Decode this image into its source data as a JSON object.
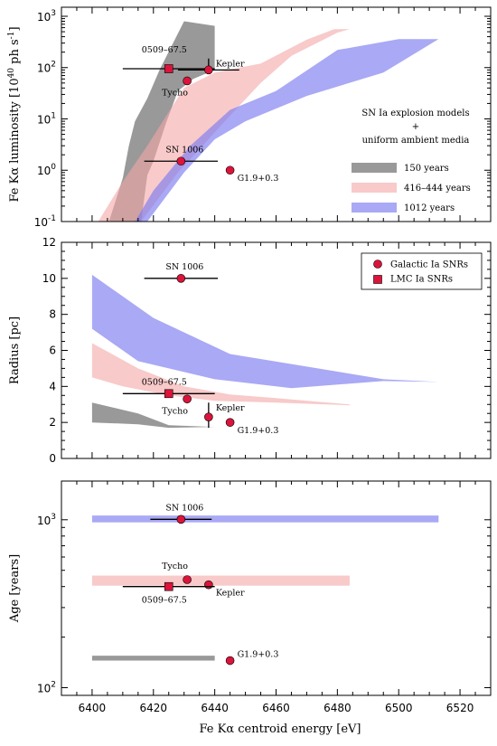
{
  "figure": {
    "xlabel": "Fe Kα centroid energy [eV]"
  },
  "chart_data": [
    {
      "type": "area",
      "panel": "top",
      "ylabel": "Fe Kα luminosity [10^40 ph s^-1]",
      "yscale": "log",
      "xlim": [
        6390,
        6530
      ],
      "ylim": [
        0.1,
        1500
      ],
      "xticks": [
        6400,
        6420,
        6440,
        6460,
        6480,
        6500,
        6520
      ],
      "yticks": [
        0.1,
        1,
        10,
        100,
        1000
      ],
      "ytick_labels": [
        "10^-1",
        "10^0",
        "10^1",
        "10^2",
        "10^3"
      ],
      "legend_title": [
        "SN Ia explosion models",
        "+",
        "uniform ambient media"
      ],
      "bands": [
        {
          "name": "150 years",
          "color": "#808080",
          "opacity": 0.8,
          "upper": [
            [
              6405.5,
              0.1
            ],
            [
              6410,
              0.7
            ],
            [
              6412,
              3
            ],
            [
              6414,
              9
            ],
            [
              6418,
              25
            ],
            [
              6422,
              90
            ],
            [
              6430,
              800
            ],
            [
              6440,
              650
            ]
          ],
          "lower": [
            [
              6440,
              90
            ],
            [
              6433,
              60
            ],
            [
              6428,
              35
            ],
            [
              6424,
              8
            ],
            [
              6420,
              1.5
            ],
            [
              6418,
              0.8
            ],
            [
              6416,
              0.1
            ]
          ]
        },
        {
          "name": "416–444 years",
          "color": "#f4a6a6",
          "opacity": 0.6,
          "upper": [
            [
              6402,
              0.1
            ],
            [
              6410,
              0.6
            ],
            [
              6418,
              3
            ],
            [
              6424,
              11
            ],
            [
              6430,
              40
            ],
            [
              6440,
              80
            ],
            [
              6455,
              120
            ],
            [
              6470,
              350
            ],
            [
              6479,
              560
            ],
            [
              6484,
              560
            ]
          ],
          "lower": [
            [
              6484,
              560
            ],
            [
              6480,
              480
            ],
            [
              6465,
              170
            ],
            [
              6455,
              50
            ],
            [
              6444,
              10
            ],
            [
              6436,
              3
            ],
            [
              6428,
              0.9
            ],
            [
              6422,
              0.3
            ],
            [
              6416,
              0.1
            ]
          ]
        },
        {
          "name": "1012 years",
          "color": "#7b7bf0",
          "opacity": 0.65,
          "upper": [
            [
              6414,
              0.1
            ],
            [
              6420,
              0.4
            ],
            [
              6432,
              3
            ],
            [
              6445,
              15
            ],
            [
              6460,
              35
            ],
            [
              6480,
              220
            ],
            [
              6500,
              360
            ],
            [
              6513,
              360
            ]
          ],
          "lower": [
            [
              6513,
              360
            ],
            [
              6495,
              80
            ],
            [
              6470,
              28
            ],
            [
              6450,
              9
            ],
            [
              6440,
              4
            ],
            [
              6430,
              0.9
            ],
            [
              6424,
              0.3
            ],
            [
              6418,
              0.1
            ]
          ]
        }
      ],
      "points": [
        {
          "label": "0509–67.5",
          "x": 6425,
          "y": 95,
          "marker": "square",
          "xerr": 15,
          "yerr": null
        },
        {
          "label": "Kepler",
          "x": 6438,
          "y": 90,
          "marker": "circle",
          "xerr": 10,
          "yerr": [
            13,
            60
          ]
        },
        {
          "label": "Tycho",
          "x": 6431,
          "y": 55,
          "marker": "circle",
          "xerr": null,
          "yerr": null
        },
        {
          "label": "SN 1006",
          "x": 6429,
          "y": 1.5,
          "marker": "circle",
          "xerr": 12,
          "yerr": null
        },
        {
          "label": "G1.9+0.3",
          "x": 6445,
          "y": 1.0,
          "marker": "circle",
          "xerr": null,
          "yerr": null
        }
      ]
    },
    {
      "type": "area",
      "panel": "middle",
      "ylabel": "Radius [pc]",
      "yscale": "linear",
      "xlim": [
        6390,
        6530
      ],
      "ylim": [
        0,
        12
      ],
      "yticks": [
        0,
        2,
        4,
        6,
        8,
        10,
        12
      ],
      "legend": [
        "Galactic Ia SNRs",
        "LMC Ia SNRs"
      ],
      "bands": [
        {
          "name": "150 years",
          "color": "#808080",
          "opacity": 0.8,
          "upper": [
            [
              6400,
              3.1
            ],
            [
              6410,
              2.7
            ],
            [
              6415,
              2.5
            ],
            [
              6425,
              1.85
            ],
            [
              6440,
              1.75
            ]
          ],
          "lower": [
            [
              6440,
              1.75
            ],
            [
              6425,
              1.7
            ],
            [
              6415,
              1.9
            ],
            [
              6400,
              2.0
            ]
          ]
        },
        {
          "name": "416–444 years",
          "color": "#f4a6a6",
          "opacity": 0.6,
          "upper": [
            [
              6400,
              6.4
            ],
            [
              6415,
              5.0
            ],
            [
              6430,
              4.0
            ],
            [
              6445,
              3.55
            ],
            [
              6460,
              3.35
            ],
            [
              6484,
              3.0
            ]
          ],
          "lower": [
            [
              6484,
              2.95
            ],
            [
              6460,
              3.1
            ],
            [
              6440,
              3.2
            ],
            [
              6425,
              3.5
            ],
            [
              6410,
              4.0
            ],
            [
              6400,
              4.5
            ]
          ]
        },
        {
          "name": "1012 years",
          "color": "#7b7bf0",
          "opacity": 0.65,
          "upper": [
            [
              6400,
              10.2
            ],
            [
              6420,
              7.8
            ],
            [
              6445,
              5.8
            ],
            [
              6470,
              5.1
            ],
            [
              6495,
              4.4
            ],
            [
              6513,
              4.25
            ]
          ],
          "lower": [
            [
              6513,
              4.25
            ],
            [
              6495,
              4.3
            ],
            [
              6465,
              3.9
            ],
            [
              6440,
              4.4
            ],
            [
              6415,
              5.4
            ],
            [
              6400,
              7.2
            ]
          ]
        }
      ],
      "points": [
        {
          "label": "SN 1006",
          "x": 6429,
          "y": 10.0,
          "marker": "circle",
          "xerr": 12,
          "yerr": null
        },
        {
          "label": "0509–67.5",
          "x": 6425,
          "y": 3.6,
          "marker": "square",
          "xerr": 15,
          "yerr": null
        },
        {
          "label": "Tycho",
          "x": 6431,
          "y": 3.3,
          "marker": "circle",
          "xerr": null,
          "yerr": null
        },
        {
          "label": "Kepler",
          "x": 6438,
          "y": 2.3,
          "marker": "circle",
          "xerr": null,
          "yerr": [
            0.6,
            0.8
          ]
        },
        {
          "label": "G1.9+0.3",
          "x": 6445,
          "y": 2.0,
          "marker": "circle",
          "xerr": null,
          "yerr": null
        }
      ]
    },
    {
      "type": "area",
      "panel": "bottom",
      "ylabel": "Age [years]",
      "yscale": "log",
      "xlim": [
        6390,
        6530
      ],
      "ylim": [
        90,
        1700
      ],
      "yticks": [
        100,
        1000
      ],
      "ytick_labels": [
        "10^2",
        "10^3"
      ],
      "bands": [
        {
          "name": "150 years",
          "color": "#808080",
          "opacity": 0.8,
          "x": [
            6400,
            6440
          ],
          "y": [
            145,
            155
          ]
        },
        {
          "name": "416–444 years",
          "color": "#f4a6a6",
          "opacity": 0.6,
          "x": [
            6400,
            6484
          ],
          "y": [
            405,
            465
          ]
        },
        {
          "name": "1012 years",
          "color": "#7b7bf0",
          "opacity": 0.65,
          "x": [
            6400,
            6513
          ],
          "y": [
            965,
            1060
          ]
        }
      ],
      "points": [
        {
          "label": "SN 1006",
          "x": 6429,
          "y": 1006,
          "marker": "circle",
          "xerr": 10,
          "yerr": null
        },
        {
          "label": "Tycho",
          "x": 6431,
          "y": 440,
          "marker": "circle",
          "xerr": null,
          "yerr": null
        },
        {
          "label": "Kepler",
          "x": 6438,
          "y": 410,
          "marker": "circle",
          "xerr": null,
          "yerr": null
        },
        {
          "label": "0509–67.5",
          "x": 6425,
          "y": 400,
          "marker": "square",
          "xerr": 15,
          "yerr": null
        },
        {
          "label": "G1.9+0.3",
          "x": 6445,
          "y": 145,
          "marker": "circle",
          "xerr": null,
          "yerr": null
        }
      ]
    }
  ]
}
